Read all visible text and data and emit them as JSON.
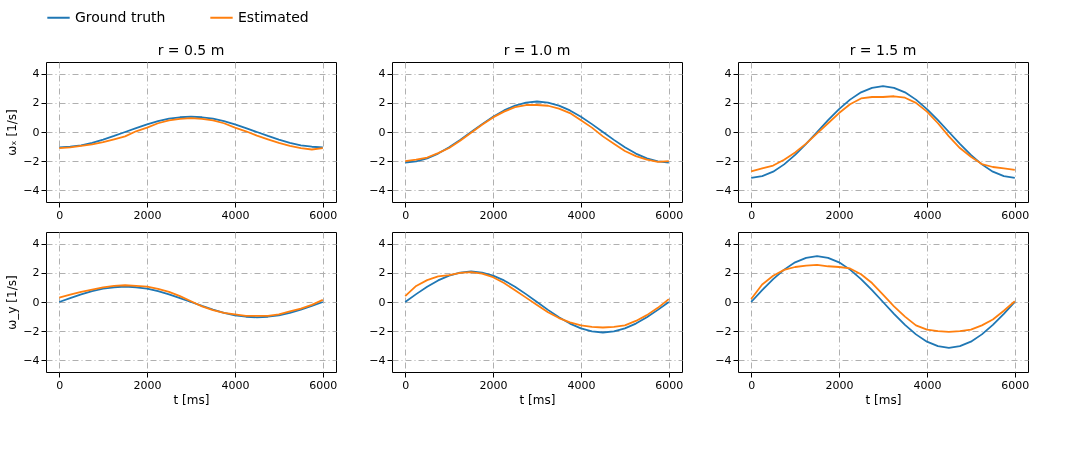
{
  "chart_data": [
    {
      "type": "line",
      "title": "r = 0.5 m",
      "ylabel": "ωₓ [1/s]",
      "legend": "top",
      "grid": true,
      "line_style": "solid",
      "xlim": [
        -300,
        6300
      ],
      "ylim": [
        -4.8,
        4.8
      ],
      "xticks": [
        0,
        2000,
        4000,
        6000
      ],
      "yticks": [
        -4,
        -2,
        0,
        2,
        4
      ],
      "x": [
        0,
        250,
        500,
        750,
        1000,
        1250,
        1500,
        1750,
        2000,
        2250,
        2500,
        2750,
        3000,
        3250,
        3500,
        3750,
        4000,
        4250,
        4500,
        4750,
        5000,
        5250,
        5500,
        5750,
        6000
      ],
      "series": [
        {
          "name": "Ground truth",
          "color": "#1f77b4",
          "values": [
            -1.05,
            -1.01,
            -0.91,
            -0.74,
            -0.52,
            -0.27,
            0,
            0.27,
            0.52,
            0.74,
            0.91,
            1.01,
            1.05,
            1.01,
            0.91,
            0.74,
            0.52,
            0.27,
            0,
            -0.27,
            -0.52,
            -0.74,
            -0.91,
            -1.01,
            -1.05
          ]
        },
        {
          "name": "Estimated",
          "color": "#ff7f0e",
          "values": [
            -1.1,
            -1.05,
            -0.95,
            -0.85,
            -0.7,
            -0.5,
            -0.3,
            0.05,
            0.3,
            0.6,
            0.8,
            0.9,
            0.95,
            0.9,
            0.8,
            0.6,
            0.3,
            0.05,
            -0.25,
            -0.5,
            -0.75,
            -0.95,
            -1.1,
            -1.2,
            -1.1
          ]
        }
      ]
    },
    {
      "type": "line",
      "title": "r = 1.0 m",
      "grid": true,
      "line_style": "solid",
      "xlim": [
        -300,
        6300
      ],
      "ylim": [
        -4.8,
        4.8
      ],
      "xticks": [
        0,
        2000,
        4000,
        6000
      ],
      "yticks": [
        -4,
        -2,
        0,
        2,
        4
      ],
      "x": [
        0,
        250,
        500,
        750,
        1000,
        1250,
        1500,
        1750,
        2000,
        2250,
        2500,
        2750,
        3000,
        3250,
        3500,
        3750,
        4000,
        4250,
        4500,
        4750,
        5000,
        5250,
        5500,
        5750,
        6000
      ],
      "series": [
        {
          "name": "Ground truth",
          "color": "#1f77b4",
          "values": [
            -2.09,
            -2.02,
            -1.81,
            -1.48,
            -1.05,
            -0.54,
            0,
            0.54,
            1.05,
            1.48,
            1.81,
            2.02,
            2.09,
            2.02,
            1.81,
            1.48,
            1.05,
            0.54,
            0,
            -0.54,
            -1.05,
            -1.48,
            -1.81,
            -2.02,
            -2.09
          ]
        },
        {
          "name": "Estimated",
          "color": "#ff7f0e",
          "values": [
            -2.0,
            -1.9,
            -1.75,
            -1.45,
            -1.1,
            -0.6,
            -0.05,
            0.5,
            1.0,
            1.4,
            1.7,
            1.85,
            1.85,
            1.8,
            1.6,
            1.3,
            0.8,
            0.3,
            -0.3,
            -0.8,
            -1.3,
            -1.65,
            -1.9,
            -2.05,
            -2.0
          ]
        }
      ]
    },
    {
      "type": "line",
      "title": "r = 1.5 m",
      "grid": true,
      "line_style": "solid",
      "xlim": [
        -300,
        6300
      ],
      "ylim": [
        -4.8,
        4.8
      ],
      "xticks": [
        0,
        2000,
        4000,
        6000
      ],
      "yticks": [
        -4,
        -2,
        0,
        2,
        4
      ],
      "x": [
        0,
        250,
        500,
        750,
        1000,
        1250,
        1500,
        1750,
        2000,
        2250,
        2500,
        2750,
        3000,
        3250,
        3500,
        3750,
        4000,
        4250,
        4500,
        4750,
        5000,
        5250,
        5500,
        5750,
        6000
      ],
      "series": [
        {
          "name": "Ground truth",
          "color": "#1f77b4",
          "values": [
            -3.14,
            -3.03,
            -2.72,
            -2.22,
            -1.57,
            -0.81,
            0,
            0.81,
            1.57,
            2.22,
            2.72,
            3.03,
            3.14,
            3.03,
            2.72,
            2.22,
            1.57,
            0.81,
            0,
            -0.81,
            -1.57,
            -2.22,
            -2.72,
            -3.03,
            -3.14
          ]
        },
        {
          "name": "Estimated",
          "color": "#ff7f0e",
          "values": [
            -2.7,
            -2.5,
            -2.3,
            -1.9,
            -1.4,
            -0.8,
            -0.1,
            0.6,
            1.3,
            1.9,
            2.3,
            2.4,
            2.4,
            2.45,
            2.35,
            2.0,
            1.4,
            0.6,
            -0.3,
            -1.1,
            -1.7,
            -2.2,
            -2.4,
            -2.5,
            -2.6
          ]
        }
      ]
    },
    {
      "type": "line",
      "xlabel": "t [ms]",
      "ylabel": "ω_y [1/s]",
      "grid": true,
      "line_style": "solid",
      "xlim": [
        -300,
        6300
      ],
      "ylim": [
        -4.8,
        4.8
      ],
      "xticks": [
        0,
        2000,
        4000,
        6000
      ],
      "yticks": [
        -4,
        -2,
        0,
        2,
        4
      ],
      "x": [
        0,
        250,
        500,
        750,
        1000,
        1250,
        1500,
        1750,
        2000,
        2250,
        2500,
        2750,
        3000,
        3250,
        3500,
        3750,
        4000,
        4250,
        4500,
        4750,
        5000,
        5250,
        5500,
        5750,
        6000
      ],
      "series": [
        {
          "name": "Ground truth",
          "color": "#1f77b4",
          "values": [
            0,
            0.27,
            0.52,
            0.74,
            0.91,
            1.01,
            1.05,
            1.01,
            0.91,
            0.74,
            0.52,
            0.27,
            0,
            -0.27,
            -0.52,
            -0.74,
            -0.91,
            -1.01,
            -1.05,
            -1.01,
            -0.91,
            -0.74,
            -0.52,
            -0.27,
            0
          ]
        },
        {
          "name": "Estimated",
          "color": "#ff7f0e",
          "values": [
            0.3,
            0.5,
            0.7,
            0.85,
            1.0,
            1.1,
            1.15,
            1.1,
            1.05,
            0.9,
            0.7,
            0.4,
            0.05,
            -0.3,
            -0.55,
            -0.75,
            -0.85,
            -0.95,
            -0.95,
            -0.95,
            -0.85,
            -0.65,
            -0.45,
            -0.2,
            0.15
          ]
        }
      ]
    },
    {
      "type": "line",
      "xlabel": "t [ms]",
      "grid": true,
      "line_style": "solid",
      "xlim": [
        -300,
        6300
      ],
      "ylim": [
        -4.8,
        4.8
      ],
      "xticks": [
        0,
        2000,
        4000,
        6000
      ],
      "yticks": [
        -4,
        -2,
        0,
        2,
        4
      ],
      "x": [
        0,
        250,
        500,
        750,
        1000,
        1250,
        1500,
        1750,
        2000,
        2250,
        2500,
        2750,
        3000,
        3250,
        3500,
        3750,
        4000,
        4250,
        4500,
        4750,
        5000,
        5250,
        5500,
        5750,
        6000
      ],
      "series": [
        {
          "name": "Ground truth",
          "color": "#1f77b4",
          "values": [
            0,
            0.54,
            1.05,
            1.48,
            1.81,
            2.02,
            2.09,
            2.02,
            1.81,
            1.48,
            1.05,
            0.54,
            0,
            -0.54,
            -1.05,
            -1.48,
            -1.81,
            -2.02,
            -2.09,
            -2.02,
            -1.81,
            -1.48,
            -1.05,
            -0.54,
            0
          ]
        },
        {
          "name": "Estimated",
          "color": "#ff7f0e",
          "values": [
            0.4,
            1.1,
            1.5,
            1.75,
            1.85,
            2.0,
            2.05,
            1.95,
            1.7,
            1.3,
            0.8,
            0.3,
            -0.2,
            -0.7,
            -1.1,
            -1.4,
            -1.6,
            -1.7,
            -1.75,
            -1.7,
            -1.6,
            -1.3,
            -0.9,
            -0.4,
            0.2
          ]
        }
      ]
    },
    {
      "type": "line",
      "xlabel": "t [ms]",
      "grid": true,
      "line_style": "solid",
      "xlim": [
        -300,
        6300
      ],
      "ylim": [
        -4.8,
        4.8
      ],
      "xticks": [
        0,
        2000,
        4000,
        6000
      ],
      "yticks": [
        -4,
        -2,
        0,
        2,
        4
      ],
      "x": [
        0,
        250,
        500,
        750,
        1000,
        1250,
        1500,
        1750,
        2000,
        2250,
        2500,
        2750,
        3000,
        3250,
        3500,
        3750,
        4000,
        4250,
        4500,
        4750,
        5000,
        5250,
        5500,
        5750,
        6000
      ],
      "series": [
        {
          "name": "Ground truth",
          "color": "#1f77b4",
          "values": [
            0,
            0.81,
            1.57,
            2.22,
            2.72,
            3.03,
            3.14,
            3.03,
            2.72,
            2.22,
            1.57,
            0.81,
            0,
            -0.81,
            -1.57,
            -2.22,
            -2.72,
            -3.03,
            -3.14,
            -3.03,
            -2.72,
            -2.22,
            -1.57,
            -0.81,
            0
          ]
        },
        {
          "name": "Estimated",
          "color": "#ff7f0e",
          "values": [
            0.2,
            1.2,
            1.8,
            2.2,
            2.4,
            2.5,
            2.55,
            2.45,
            2.4,
            2.3,
            1.9,
            1.3,
            0.5,
            -0.3,
            -1.0,
            -1.6,
            -1.9,
            -2.0,
            -2.05,
            -2.0,
            -1.9,
            -1.6,
            -1.2,
            -0.6,
            0.05
          ]
        }
      ]
    }
  ]
}
